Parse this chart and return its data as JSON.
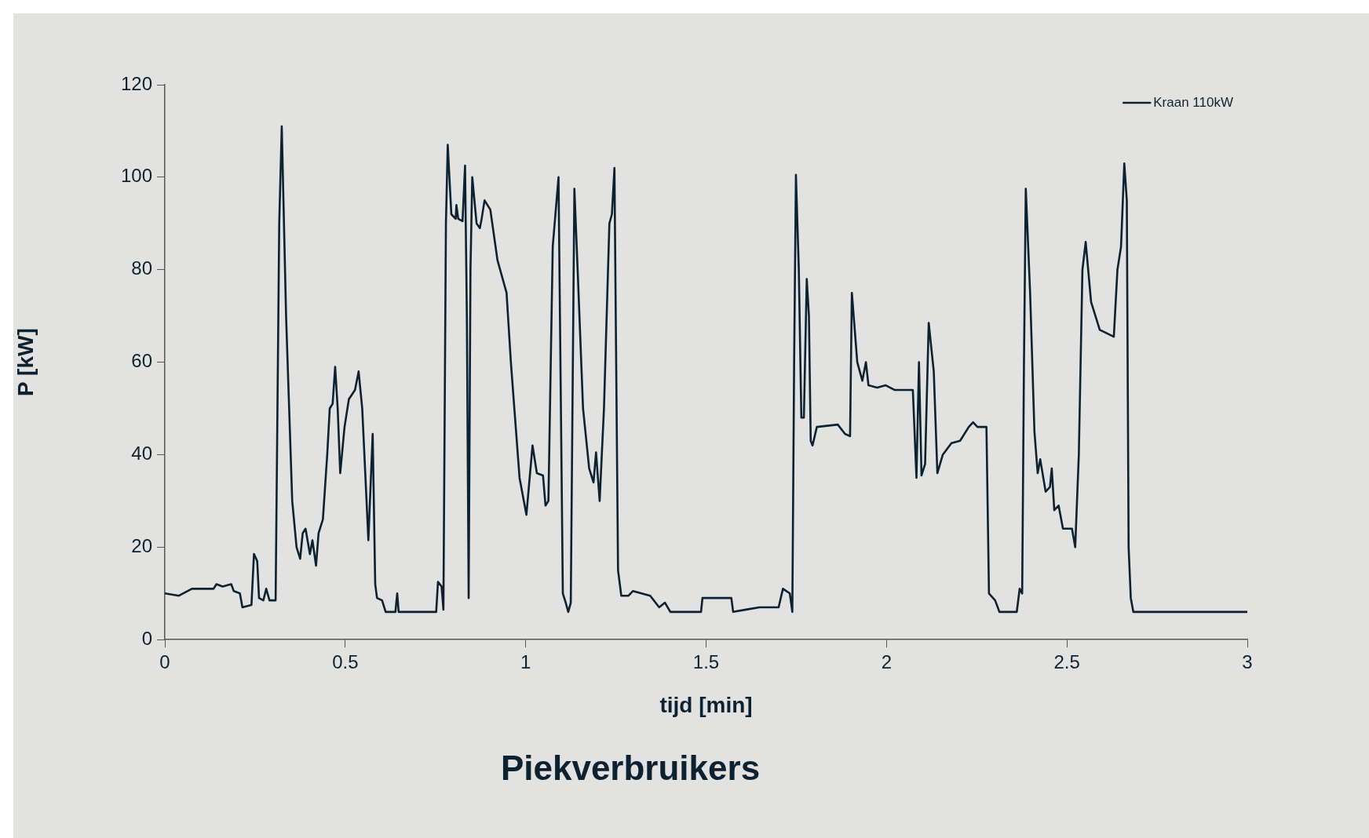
{
  "chart_data": {
    "type": "line",
    "title": "Piekverbruikers",
    "xlabel": "tijd [min]",
    "ylabel": "P [kW]",
    "xlim": [
      0,
      3
    ],
    "xticks": [
      0,
      0.5,
      1,
      1.5,
      2,
      2.5,
      3
    ],
    "ylim": [
      0,
      120
    ],
    "yticks": [
      0,
      20,
      40,
      60,
      80,
      100,
      120
    ],
    "grid": false,
    "legend": "top right",
    "marker": "none",
    "line_style": "solid",
    "series": [
      {
        "name": "Kraan 110kW",
        "color": "#0d2230",
        "x": [
          0,
          0.039,
          0.075,
          0.135,
          0.143,
          0.16,
          0.184,
          0.191,
          0.208,
          0.215,
          0.24,
          0.247,
          0.256,
          0.261,
          0.273,
          0.281,
          0.29,
          0.307,
          0.317,
          0.324,
          0.336,
          0.353,
          0.365,
          0.375,
          0.382,
          0.39,
          0.402,
          0.409,
          0.419,
          0.426,
          0.438,
          0.45,
          0.457,
          0.465,
          0.472,
          0.479,
          0.486,
          0.498,
          0.51,
          0.527,
          0.537,
          0.547,
          0.559,
          0.564,
          0.576,
          0.583,
          0.588,
          0.602,
          0.612,
          0.639,
          0.644,
          0.648,
          0.752,
          0.757,
          0.767,
          0.772,
          0.779,
          0.784,
          0.794,
          0.806,
          0.808,
          0.813,
          0.825,
          0.832,
          0.837,
          0.842,
          0.847,
          0.852,
          0.864,
          0.873,
          0.878,
          0.886,
          0.902,
          0.922,
          0.947,
          0.959,
          0.983,
          1.002,
          1.019,
          1.031,
          1.048,
          1.055,
          1.063,
          1.075,
          1.091,
          1.103,
          1.111,
          1.118,
          1.125,
          1.135,
          1.144,
          1.159,
          1.176,
          1.188,
          1.195,
          1.205,
          1.217,
          1.232,
          1.239,
          1.246,
          1.256,
          1.265,
          1.285,
          1.297,
          1.321,
          1.345,
          1.37,
          1.386,
          1.401,
          1.486,
          1.49,
          1.57,
          1.575,
          1.611,
          1.648,
          1.701,
          1.713,
          1.732,
          1.739,
          1.744,
          1.749,
          1.757,
          1.764,
          1.771,
          1.779,
          1.785,
          1.79,
          1.795,
          1.807,
          1.865,
          1.885,
          1.899,
          1.904,
          1.919,
          1.933,
          1.943,
          1.95,
          1.974,
          1.998,
          2.022,
          2.073,
          2.083,
          2.09,
          2.097,
          2.107,
          2.117,
          2.131,
          2.141,
          2.156,
          2.18,
          2.204,
          2.228,
          2.24,
          2.252,
          2.277,
          2.284,
          2.301,
          2.313,
          2.361,
          2.369,
          2.376,
          2.381,
          2.386,
          2.398,
          2.41,
          2.419,
          2.426,
          2.441,
          2.453,
          2.458,
          2.465,
          2.477,
          2.489,
          2.514,
          2.523,
          2.533,
          2.543,
          2.552,
          2.567,
          2.591,
          2.63,
          2.64,
          2.65,
          2.659,
          2.666,
          2.671,
          2.677,
          2.684,
          3
        ],
        "values": [
          10,
          9.5,
          11,
          11,
          12,
          11.5,
          12,
          10.5,
          10,
          7,
          7.5,
          18.5,
          17,
          9,
          8.5,
          11,
          8.5,
          8.5,
          90,
          111,
          70,
          30,
          20,
          17.5,
          23,
          24,
          18.5,
          21.5,
          16,
          23,
          26,
          40,
          50,
          51,
          59,
          50,
          36,
          46,
          52,
          54,
          58,
          50,
          30,
          21.5,
          44.5,
          12,
          9,
          8.5,
          6,
          6,
          10,
          6,
          6,
          12.5,
          11.5,
          6.5,
          90,
          107,
          92,
          91,
          94,
          91,
          90.5,
          102.5,
          70,
          9,
          80,
          100,
          90,
          89,
          91,
          95,
          93,
          82,
          75,
          60,
          35,
          27,
          42,
          36,
          35.5,
          29,
          30,
          85,
          100,
          10,
          8,
          6,
          8,
          97.5,
          80,
          50,
          37,
          34,
          40.5,
          30,
          50,
          90,
          92,
          102,
          15,
          9.5,
          9.5,
          10.5,
          10,
          9.5,
          7,
          8,
          6,
          6,
          9,
          9,
          6,
          6.5,
          7,
          7,
          11,
          10,
          6,
          60,
          100.5,
          80,
          48,
          48,
          78,
          70,
          43,
          42,
          46,
          46.5,
          44.5,
          44,
          75,
          60,
          56,
          60,
          55,
          54.5,
          55,
          54,
          54,
          35,
          60,
          35.5,
          38,
          68.5,
          58,
          36,
          40,
          42.5,
          43,
          46,
          47,
          46,
          46,
          10,
          8.5,
          6,
          6,
          11,
          10,
          60,
          97.5,
          75,
          45,
          36,
          39,
          32,
          33,
          37,
          28,
          29,
          24,
          24,
          20,
          40,
          80,
          86,
          73,
          67,
          65.5,
          80,
          85,
          103,
          95,
          20,
          9,
          6,
          6
        ]
      }
    ]
  }
}
